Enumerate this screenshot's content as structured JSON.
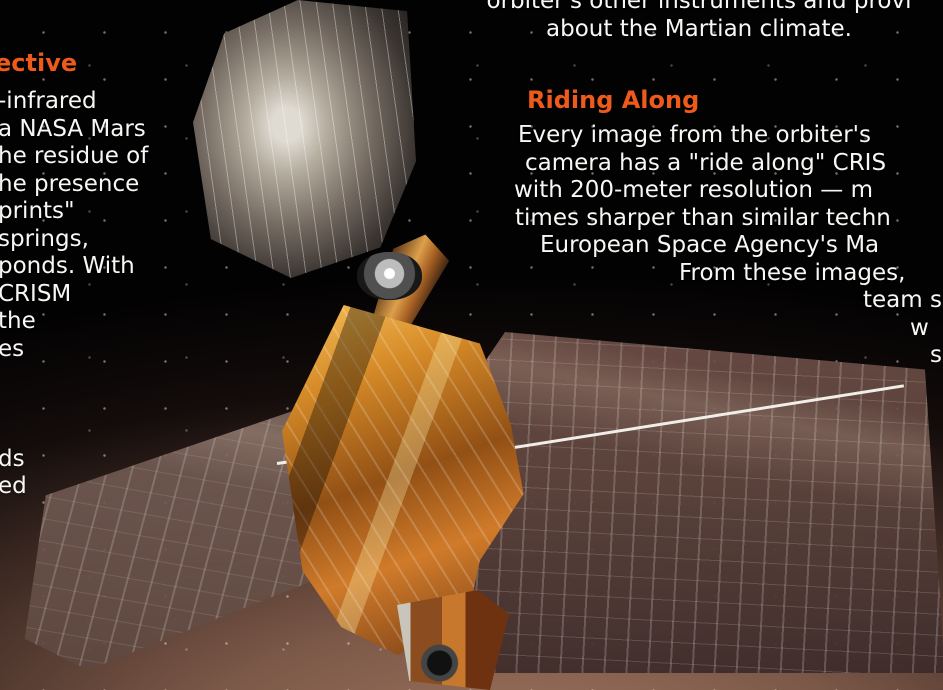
{
  "left_section": {
    "heading": "ective",
    "lines": [
      "-infrared",
      "a NASA Mars",
      "he residue of",
      "he presence",
      "prints\"",
      "springs,",
      "ponds. With",
      "CRISM",
      "the",
      "es",
      "",
      "",
      "",
      "ds",
      "ed"
    ]
  },
  "top_right_text": [
    "orbiter's other instruments and provi",
    "about the Martian climate."
  ],
  "riding_along": {
    "heading": "Riding Along",
    "lines": [
      "Every image from the orbiter's",
      "camera has a \"ride along\" CRIS",
      "with 200-meter resolution — m",
      "times sharper than similar techn",
      "European Space Agency's Ma",
      "From these images,",
      "team s",
      "w",
      "s"
    ]
  },
  "colors": {
    "heading": "#ed5a1c",
    "body_text": "#f7f7f4",
    "space": "#030203",
    "mars_glow": "#a27760",
    "gold_foil": "#d58a27"
  },
  "image": {
    "subject": "Mars Reconnaissance Orbiter spacecraft above Mars",
    "icons": [
      "satellite-dish-icon",
      "solar-panel-icon",
      "camera-icon"
    ]
  }
}
